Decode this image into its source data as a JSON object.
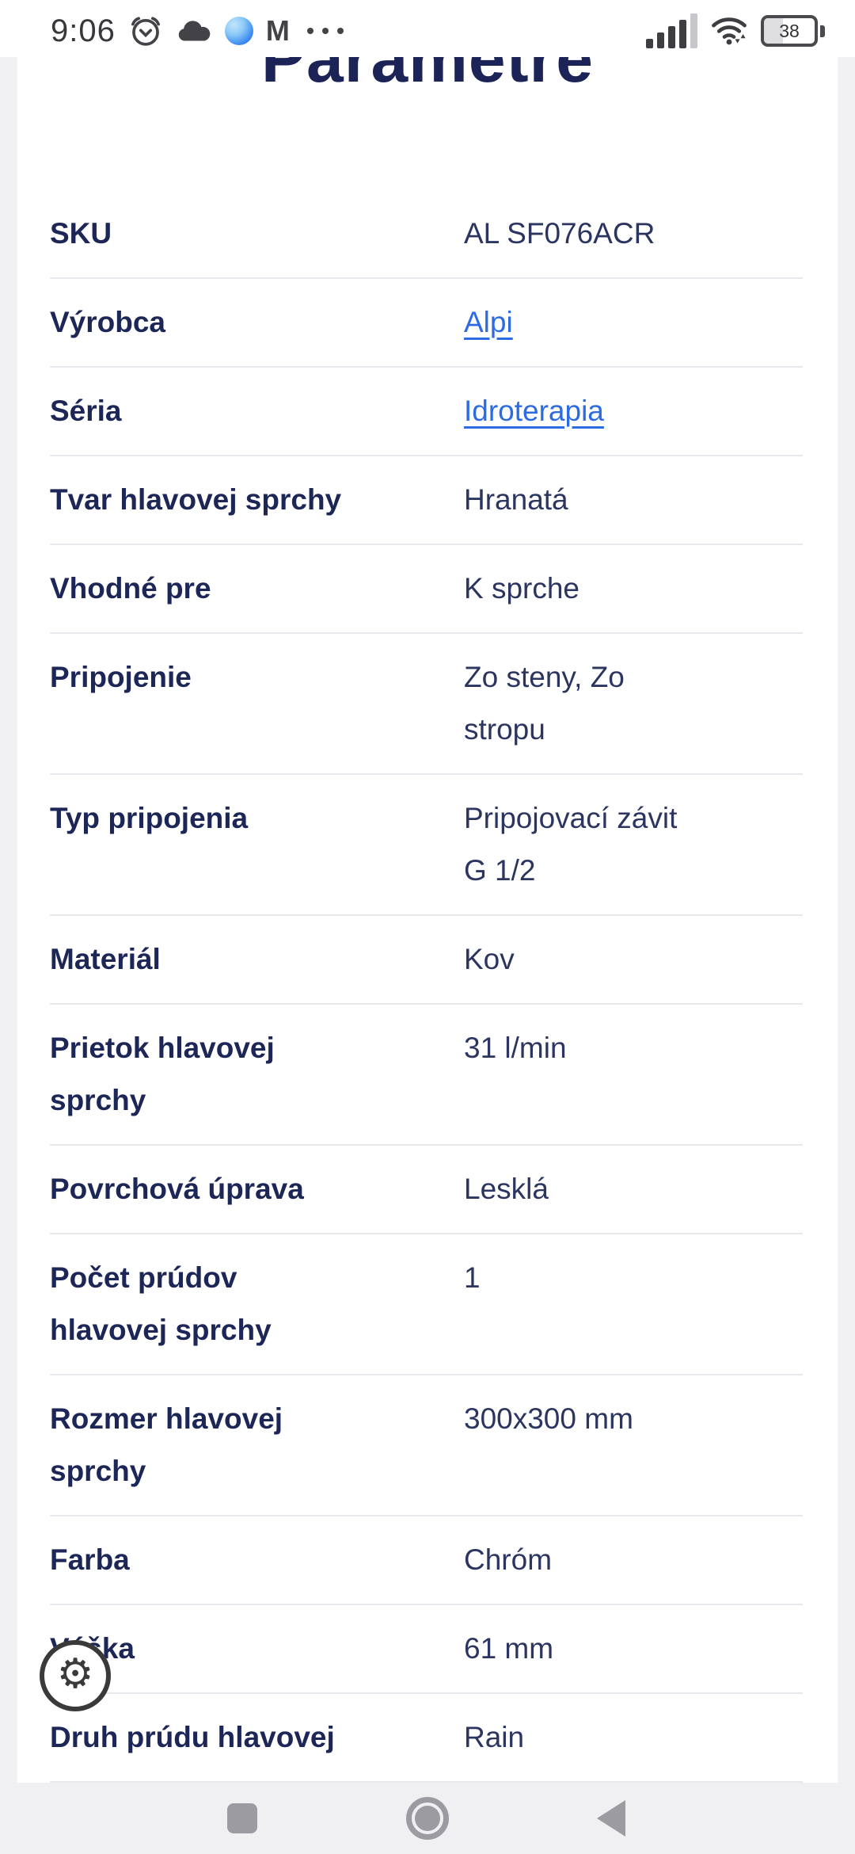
{
  "status_bar": {
    "time": "9:06",
    "battery_percent": "38",
    "left_icons": [
      "alarm-icon",
      "cloud-icon",
      "edge-browser-icon",
      "gmail-icon",
      "more-notifications-icon"
    ],
    "right_icons": [
      "signal-strength-icon",
      "wifi-icon",
      "battery-indicator"
    ]
  },
  "page": {
    "title": "Parametre"
  },
  "table": {
    "rows": [
      {
        "label": "SKU",
        "value": "AL SF076ACR",
        "link": false
      },
      {
        "label": "Výrobca",
        "value": "Alpi",
        "link": true
      },
      {
        "label": "Séria",
        "value": "Idroterapia",
        "link": true
      },
      {
        "label": "Tvar hlavovej sprchy",
        "value": "Hranatá",
        "link": false
      },
      {
        "label": "Vhodné pre",
        "value": "K sprche",
        "link": false
      },
      {
        "label": "Pripojenie",
        "value": "Zo steny, Zo stropu",
        "value_lines": [
          "Zo steny, Zo",
          "stropu"
        ],
        "link": false
      },
      {
        "label": "Typ pripojenia",
        "value": "Pripojovací závit G 1/2",
        "value_lines": [
          "Pripojovací závit",
          "G 1/2"
        ],
        "link": false
      },
      {
        "label": "Materiál",
        "value": "Kov",
        "link": false
      },
      {
        "label": "Prietok hlavovej sprchy",
        "label_lines": [
          "Prietok hlavovej",
          "sprchy"
        ],
        "value": "31 l/min",
        "link": false
      },
      {
        "label": "Povrchová úprava",
        "value": "Lesklá",
        "link": false
      },
      {
        "label": "Počet prúdov hlavovej sprchy",
        "label_lines": [
          "Počet prúdov",
          "hlavovej sprchy"
        ],
        "value": "1",
        "link": false
      },
      {
        "label": "Rozmer hlavovej sprchy",
        "label_lines": [
          "Rozmer hlavovej",
          "sprchy"
        ],
        "value": "300x300 mm",
        "link": false
      },
      {
        "label": "Farba",
        "value": "Chróm",
        "link": false
      },
      {
        "label": "Výška",
        "value": "61 mm",
        "link": false
      },
      {
        "label": "Druh prúdu hlavovej",
        "value": "Rain",
        "link": false
      }
    ]
  },
  "fab": {
    "icon": "gear"
  },
  "nav_bar": {
    "buttons": [
      "recents",
      "home",
      "back"
    ]
  },
  "colors": {
    "title_navy": "#1c2457",
    "label_navy": "#1d2757",
    "value_navy": "#2b3560",
    "link_blue": "#2c6be4",
    "divider": "#e9e9ed",
    "page_bg": "#f1f1f4",
    "navbar_bg": "#f0f0f3",
    "nav_icon_gray": "#9b9ba1",
    "status_icon_dark": "#3e3e42"
  }
}
